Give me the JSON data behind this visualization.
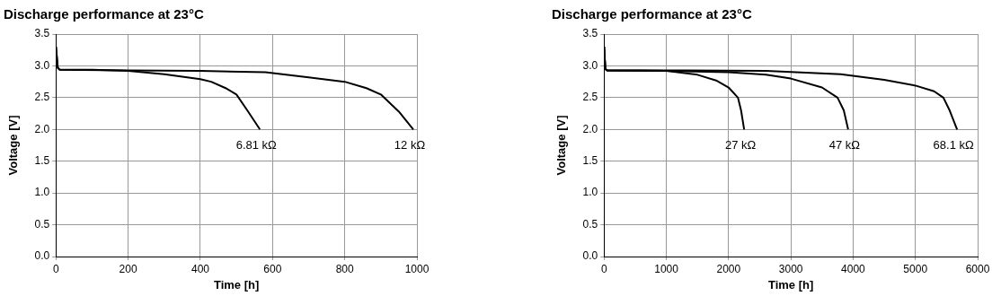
{
  "chart_data": [
    {
      "type": "line",
      "title": "Discharge performance at 23°C",
      "xlabel": "Time [h]",
      "ylabel": "Voltage [V]",
      "xlim": [
        0,
        1000
      ],
      "xticks": [
        0,
        200,
        400,
        600,
        800,
        1000
      ],
      "ylim": [
        0,
        3.5
      ],
      "yticks": [
        {
          "value": 0,
          "label": "0.0"
        },
        0.5,
        {
          "value": 1,
          "label": "1.0"
        },
        1.5,
        {
          "value": 2,
          "label": "2.0"
        },
        2.5,
        {
          "value": 3,
          "label": "3.0"
        },
        3.5
      ],
      "grid": true,
      "legend": false,
      "marker": "none",
      "line_style": "solid",
      "series": [
        {
          "name": "6.81 kΩ",
          "color": "#000000",
          "x": [
            0,
            5,
            10,
            100,
            200,
            300,
            400,
            430,
            470,
            500,
            530,
            565
          ],
          "values": [
            3.3,
            2.97,
            2.94,
            2.94,
            2.92,
            2.87,
            2.79,
            2.75,
            2.65,
            2.55,
            2.3,
            2.0
          ]
        },
        {
          "name": "12 kΩ",
          "color": "#000000",
          "x": [
            0,
            5,
            10,
            200,
            400,
            580,
            700,
            800,
            860,
            900,
            950,
            990
          ],
          "values": [
            3.3,
            2.97,
            2.94,
            2.93,
            2.92,
            2.9,
            2.82,
            2.75,
            2.65,
            2.55,
            2.28,
            2.0
          ]
        }
      ]
    },
    {
      "type": "line",
      "title": "Discharge performance at 23°C",
      "xlabel": "Time [h]",
      "ylabel": "Voltage [V]",
      "xlim": [
        0,
        6000
      ],
      "xticks": [
        0,
        1000,
        2000,
        3000,
        4000,
        5000,
        6000
      ],
      "ylim": [
        0,
        3.5
      ],
      "yticks": [
        {
          "value": 0,
          "label": "0.0"
        },
        0.5,
        {
          "value": 1,
          "label": "1.0"
        },
        1.5,
        {
          "value": 2,
          "label": "2.0"
        },
        2.5,
        {
          "value": 3,
          "label": "3.0"
        },
        3.5
      ],
      "grid": true,
      "legend": false,
      "marker": "none",
      "line_style": "solid",
      "series": [
        {
          "name": "27 kΩ",
          "color": "#000000",
          "x": [
            0,
            20,
            50,
            1000,
            1500,
            1800,
            2000,
            2150,
            2200,
            2250
          ],
          "values": [
            3.3,
            2.95,
            2.93,
            2.92,
            2.86,
            2.77,
            2.66,
            2.5,
            2.3,
            2.0
          ]
        },
        {
          "name": "47 kΩ",
          "color": "#000000",
          "x": [
            0,
            20,
            50,
            1000,
            2000,
            2600,
            3000,
            3500,
            3750,
            3850,
            3920
          ],
          "values": [
            3.3,
            2.95,
            2.93,
            2.92,
            2.9,
            2.86,
            2.8,
            2.66,
            2.5,
            2.3,
            2.0
          ]
        },
        {
          "name": "68.1 kΩ",
          "color": "#000000",
          "x": [
            0,
            20,
            50,
            1000,
            2600,
            3800,
            4500,
            5000,
            5300,
            5450,
            5550,
            5670
          ],
          "values": [
            3.3,
            2.95,
            2.93,
            2.93,
            2.92,
            2.87,
            2.78,
            2.69,
            2.6,
            2.5,
            2.3,
            2.0
          ]
        }
      ]
    }
  ]
}
